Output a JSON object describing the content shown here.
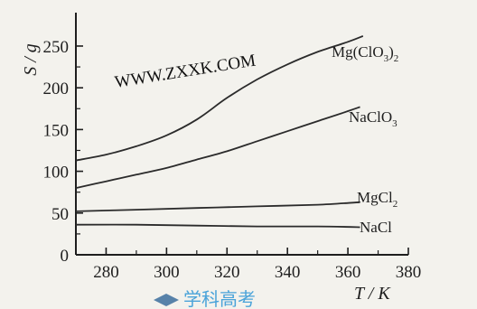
{
  "chart_data": {
    "type": "line",
    "xlabel": "T / K",
    "ylabel": "S / g",
    "xlim": [
      270,
      380
    ],
    "ylim": [
      0,
      290
    ],
    "x_ticks": [
      280,
      300,
      320,
      340,
      360,
      380
    ],
    "y_ticks": [
      0,
      50,
      100,
      150,
      200,
      250
    ],
    "grid": false,
    "series": [
      {
        "name": "Mg(ClO3)2",
        "label_text": "Mg(ClO",
        "label_sub1": "3",
        "label_mid": ")",
        "label_sub2": "2",
        "x": [
          270,
          280,
          290,
          300,
          310,
          320,
          330,
          340,
          350,
          360,
          365
        ],
        "y": [
          113,
          120,
          130,
          143,
          162,
          188,
          210,
          228,
          243,
          255,
          262
        ]
      },
      {
        "name": "NaClO3",
        "label_text": "NaClO",
        "label_sub1": "3",
        "x": [
          270,
          280,
          290,
          300,
          310,
          320,
          330,
          340,
          350,
          360,
          364
        ],
        "y": [
          80,
          88,
          96,
          104,
          114,
          124,
          136,
          148,
          160,
          172,
          177
        ]
      },
      {
        "name": "MgCl2",
        "label_text": "MgCl",
        "label_sub1": "2",
        "x": [
          270,
          290,
          310,
          330,
          350,
          364
        ],
        "y": [
          52,
          54,
          56,
          58,
          60,
          63
        ]
      },
      {
        "name": "NaCl",
        "label_text": "NaCl",
        "x": [
          270,
          290,
          310,
          330,
          350,
          364
        ],
        "y": [
          36,
          36,
          35,
          34,
          34,
          33
        ]
      }
    ],
    "watermark": "WWW.ZXXK.COM",
    "footer_logo_text": "学科高考"
  },
  "colors": {
    "line": "#2b2b2b",
    "axis": "#1e1e1e",
    "watermark": "#111111",
    "logo_blue": "#4aa3d9",
    "logo_red": "#d9433a"
  }
}
